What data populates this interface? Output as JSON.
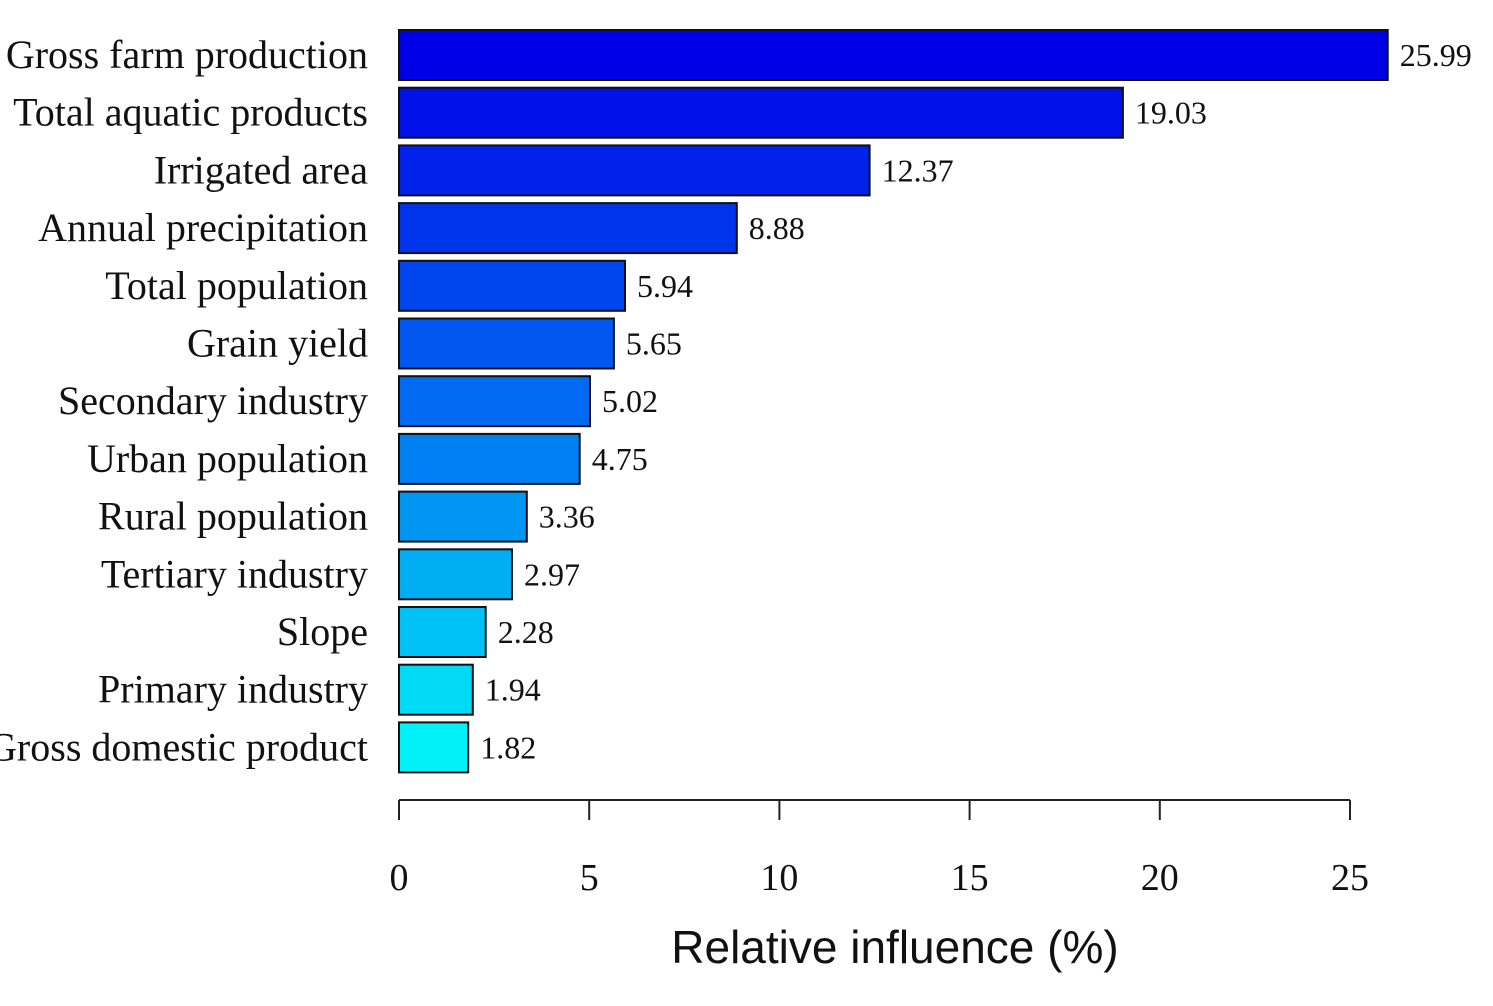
{
  "chart_data": {
    "type": "bar",
    "orientation": "horizontal",
    "title": "",
    "xlabel": "Relative influence (%)",
    "ylabel": "",
    "xlim": [
      0,
      25
    ],
    "xticks": [
      0,
      5,
      10,
      15,
      20,
      25
    ],
    "xtick_labels": [
      "0",
      "5",
      "10",
      "15",
      "20",
      "25"
    ],
    "grid": false,
    "categories": [
      "Gross farm production",
      "Total aquatic products",
      "Irrigated area",
      "Annual precipitation",
      "Total population",
      "Grain yield",
      "Secondary industry",
      "Urban population",
      "Rural population",
      "Tertiary industry",
      "Slope",
      "Primary industry",
      "Gross domestic product"
    ],
    "values": [
      25.99,
      19.03,
      12.37,
      8.88,
      5.94,
      5.65,
      5.02,
      4.75,
      3.36,
      2.97,
      2.28,
      1.94,
      1.82
    ],
    "value_labels": [
      "25.99",
      "19.03",
      "12.37",
      "8.88",
      "5.94",
      "5.65",
      "5.02",
      "4.75",
      "3.36",
      "2.97",
      "2.28",
      "1.94",
      "1.82"
    ],
    "colors": [
      "#0000E6",
      "#0010E8",
      "#0022EA",
      "#0034EC",
      "#0046EE",
      "#0058F0",
      "#006AF2",
      "#0080F2",
      "#0096F2",
      "#00ACF2",
      "#00C2F4",
      "#00DAF6",
      "#00F2F8"
    ]
  }
}
